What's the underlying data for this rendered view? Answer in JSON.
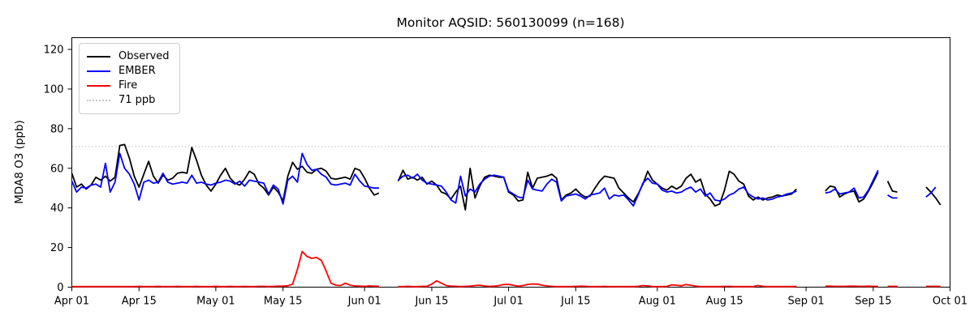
{
  "chart_data": {
    "type": "line",
    "title": "Monitor AQSID: 560130099 (n=168)",
    "ylabel": "MDA8 O3 (ppb)",
    "xlabel": "",
    "ylim": [
      0,
      126
    ],
    "yticks": [
      0,
      20,
      40,
      60,
      80,
      100,
      120
    ],
    "xticks": [
      {
        "label": "Apr 01",
        "day": 0
      },
      {
        "label": "Apr 15",
        "day": 14
      },
      {
        "label": "May 01",
        "day": 30
      },
      {
        "label": "May 15",
        "day": 44
      },
      {
        "label": "Jun 01",
        "day": 61
      },
      {
        "label": "Jun 15",
        "day": 75
      },
      {
        "label": "Jul 01",
        "day": 91
      },
      {
        "label": "Jul 15",
        "day": 105
      },
      {
        "label": "Aug 01",
        "day": 122
      },
      {
        "label": "Aug 15",
        "day": 136
      },
      {
        "label": "Sep 01",
        "day": 153
      },
      {
        "label": "Sep 15",
        "day": 167
      },
      {
        "label": "Oct 01",
        "day": 183
      }
    ],
    "x_range_days": [
      0,
      183
    ],
    "grid": false,
    "legend_position": "upper-left",
    "threshold": {
      "value": 71,
      "label": "71 ppb",
      "style": "dotted",
      "color": "#c8c8c8"
    },
    "series": [
      {
        "name": "Observed",
        "color": "#000000",
        "values": [
          57.5,
          50.5,
          52,
          49.5,
          51.5,
          55.5,
          54,
          56,
          53.5,
          55.5,
          71.5,
          72,
          65,
          56,
          50.5,
          57,
          63.5,
          56,
          52.5,
          56.5,
          54,
          55,
          57.5,
          58,
          57.5,
          70.5,
          64,
          56.5,
          51.5,
          48.5,
          52,
          56.5,
          60,
          55,
          52.5,
          51.5,
          54.5,
          58.5,
          57,
          52,
          50,
          46.5,
          50.5,
          48,
          43.5,
          56,
          63,
          59.5,
          61,
          58,
          57.5,
          59.5,
          60,
          58.5,
          55,
          54.5,
          55,
          55.5,
          54.5,
          60,
          59,
          55,
          50,
          46.5,
          47.5,
          null,
          null,
          null,
          53.5,
          59,
          54.5,
          55.5,
          54,
          55.5,
          52,
          53.5,
          51.5,
          48,
          47,
          44.5,
          48,
          51,
          39,
          60,
          45,
          51,
          55.5,
          56.5,
          56,
          55.5,
          55.5,
          48,
          46.5,
          43.5,
          44,
          58,
          50,
          55,
          55.5,
          56,
          57,
          55,
          44,
          46.5,
          47.5,
          49.5,
          47,
          45.5,
          46,
          50,
          53.5,
          56,
          55.5,
          55,
          50,
          47.5,
          45,
          43,
          47,
          52,
          58.5,
          54,
          52,
          50,
          49,
          51,
          49.5,
          51,
          55,
          57,
          53,
          54.5,
          47,
          44.5,
          41,
          42,
          49,
          58.5,
          57,
          53.5,
          52,
          46,
          44,
          45.5,
          44,
          45,
          45.5,
          46.5,
          46,
          46.5,
          47,
          49.5,
          null,
          null,
          null,
          null,
          null,
          48.5,
          51,
          50.5,
          45.5,
          47,
          48,
          48.5,
          43,
          44.5,
          48.5,
          53,
          58,
          null,
          53.5,
          48.5,
          48,
          null,
          null,
          null,
          null,
          null,
          50.5,
          48,
          45,
          41.5,
          null,
          null
        ]
      },
      {
        "name": "EMBER",
        "color": "#0000ff",
        "values": [
          53.5,
          48,
          50.5,
          50,
          51.5,
          52,
          50.5,
          62.5,
          48,
          53,
          67.5,
          60,
          57,
          52,
          44,
          53,
          54,
          52.5,
          53,
          57.5,
          53,
          52,
          52.5,
          53,
          52.5,
          56.5,
          52.5,
          53,
          52,
          51.5,
          52.5,
          53,
          54,
          53.5,
          52,
          53.5,
          51,
          54,
          53.5,
          53,
          52.5,
          47,
          51.5,
          49.5,
          42,
          54,
          56,
          53,
          67.5,
          62,
          59,
          59.5,
          57,
          55.5,
          52,
          51.5,
          52,
          52.5,
          51.5,
          57,
          53.5,
          51,
          50.5,
          50,
          50,
          null,
          null,
          null,
          54,
          56,
          56.5,
          55,
          57,
          54,
          52.5,
          52,
          51.5,
          51,
          48,
          44,
          42.5,
          56,
          46,
          49.5,
          48,
          52,
          54.5,
          56,
          56.5,
          56,
          55.5,
          48.5,
          47,
          45.5,
          45,
          54,
          49.5,
          49,
          48.5,
          52,
          54.5,
          53,
          43.5,
          46,
          46.5,
          47,
          46,
          44.5,
          46.5,
          47,
          47.5,
          50,
          44.5,
          46.5,
          46,
          46.5,
          44,
          41,
          46.5,
          52.5,
          55,
          52.5,
          52,
          49,
          48,
          48.5,
          47.5,
          48,
          49.5,
          50.5,
          48,
          49.5,
          46,
          47.5,
          44,
          43.5,
          44.5,
          46.5,
          47.5,
          49.5,
          50.5,
          47,
          45.5,
          44.5,
          45,
          44,
          44.5,
          45.5,
          46,
          47,
          47.5,
          48.5,
          null,
          null,
          null,
          null,
          null,
          47.5,
          48,
          49.5,
          47,
          47.5,
          48,
          50,
          45,
          45.5,
          49,
          54,
          59,
          null,
          46.5,
          45,
          45,
          null,
          null,
          null,
          null,
          null,
          45.5,
          47.5,
          50.5,
          null,
          null,
          null
        ]
      },
      {
        "name": "Fire",
        "color": "#ff0000",
        "values": [
          0.3,
          0.3,
          0.3,
          0.3,
          0.3,
          0.3,
          0.3,
          0.3,
          0.3,
          0.3,
          0.3,
          0.3,
          0.3,
          0.3,
          0.4,
          0.3,
          0.3,
          0.3,
          0.4,
          0.3,
          0.3,
          0.3,
          0.4,
          0.3,
          0.3,
          0.3,
          0.4,
          0.3,
          0.3,
          0.3,
          0.4,
          0.3,
          0.3,
          0.4,
          0.3,
          0.3,
          0.4,
          0.3,
          0.3,
          0.4,
          0.4,
          0.3,
          0.4,
          0.5,
          0.5,
          0.7,
          1.5,
          9,
          18,
          15.5,
          14.5,
          15,
          13.5,
          8,
          2,
          1,
          0.8,
          2,
          1,
          0.6,
          0.5,
          0.4,
          0.6,
          0.5,
          0.4,
          null,
          null,
          null,
          0.3,
          0.3,
          0.4,
          0.3,
          0.3,
          0.4,
          0.4,
          1.5,
          3.2,
          2,
          0.8,
          0.5,
          0.4,
          0.3,
          0.4,
          0.5,
          0.8,
          1,
          0.6,
          0.4,
          0.5,
          0.8,
          1.3,
          1.4,
          0.9,
          0.5,
          0.8,
          1.4,
          1.6,
          1.5,
          1,
          0.6,
          0.4,
          0.3,
          0.3,
          0.3,
          0.3,
          0.4,
          0.5,
          0.4,
          0.3,
          0.3,
          0.3,
          0.4,
          0.3,
          0.3,
          0.3,
          0.3,
          0.3,
          0.3,
          0.4,
          0.8,
          0.6,
          0.3,
          0.3,
          0.3,
          0.4,
          1.2,
          1,
          0.7,
          1.3,
          1,
          0.5,
          0.3,
          0.3,
          0.3,
          0.3,
          0.3,
          0.4,
          0.4,
          0.3,
          0.3,
          0.3,
          0.3,
          0.3,
          0.8,
          0.4,
          0.3,
          0.3,
          0.3,
          0.3,
          0.3,
          0.3,
          0.4,
          null,
          null,
          null,
          null,
          null,
          0.5,
          0.5,
          0.4,
          0.4,
          0.4,
          0.5,
          0.5,
          0.4,
          0.4,
          0.5,
          0.4,
          0.4,
          null,
          0.4,
          0.4,
          0.4,
          null,
          null,
          null,
          null,
          null,
          0.4,
          0.4,
          0.4,
          0.4,
          null,
          null
        ]
      }
    ]
  },
  "legend": {
    "observed": "Observed",
    "ember": "EMBER",
    "fire": "Fire",
    "threshold": "71 ppb"
  }
}
